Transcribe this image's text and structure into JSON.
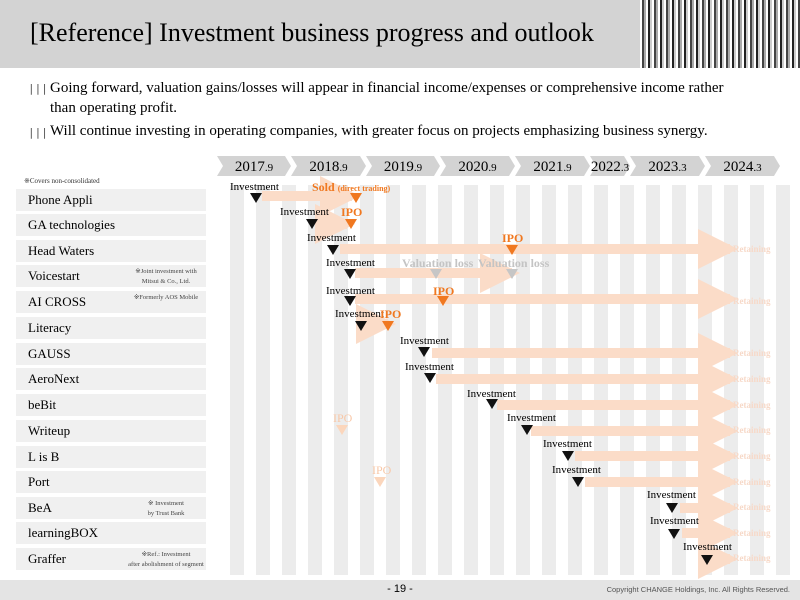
{
  "title": "[Reference] Investment business progress and outlook",
  "bullets": [
    {
      "mark": "|||",
      "text": "Going forward, valuation gains/losses will appear in financial income/expenses or comprehensive income rather"
    },
    {
      "mark": "",
      "text": "than operating profit."
    },
    {
      "mark": "|||",
      "text": "Will continue investing in operating companies, with greater focus on projects emphasizing business synergy."
    }
  ],
  "years": [
    {
      "main": "2017",
      "sub": ".9"
    },
    {
      "main": "2018",
      "sub": ".9"
    },
    {
      "main": "2019",
      "sub": ".9"
    },
    {
      "main": "2020",
      "sub": ".9"
    },
    {
      "main": "2021",
      "sub": ".9"
    },
    {
      "main": "2022",
      "sub": ".3"
    },
    {
      "main": "2023",
      "sub": ".3"
    },
    {
      "main": "2024",
      "sub": ".3"
    }
  ],
  "note_top": "※Covers non-consolidated",
  "companies": [
    {
      "name": "Phone Appli",
      "note1": "",
      "note2": ""
    },
    {
      "name": "GA technologies",
      "note1": "",
      "note2": ""
    },
    {
      "name": "Head Waters",
      "note1": "",
      "note2": ""
    },
    {
      "name": "Voicestart",
      "note1": "※Joint investment with",
      "note2": "Mitsui & Co., Ltd."
    },
    {
      "name": "AI CROSS",
      "note1": "※Formerly AOS Mobile",
      "note2": ""
    },
    {
      "name": "Literacy",
      "note1": "",
      "note2": ""
    },
    {
      "name": "GAUSS",
      "note1": "",
      "note2": ""
    },
    {
      "name": "AeroNext",
      "note1": "",
      "note2": ""
    },
    {
      "name": "beBit",
      "note1": "",
      "note2": ""
    },
    {
      "name": "Writeup",
      "note1": "",
      "note2": ""
    },
    {
      "name": "L is B",
      "note1": "",
      "note2": ""
    },
    {
      "name": "Port",
      "note1": "",
      "note2": ""
    },
    {
      "name": "BeA",
      "note1": "※ Investment",
      "note2": "by Trust Bank"
    },
    {
      "name": "learningBOX",
      "note1": "",
      "note2": ""
    },
    {
      "name": "Graffer",
      "note1": "※Ref.: Investment",
      "note2": "after abolishment of segment"
    }
  ],
  "labels": {
    "investment": "Investment",
    "sold": "Sold",
    "direct_trading": "(direct trading)",
    "ipo": "IPO",
    "valuation_loss": "Valuation loss",
    "retaining": "Retaining"
  },
  "colors": {
    "accent": "#f07820",
    "arrow_faint": "#fbdcc8",
    "header_bg": "#d3d3d3"
  },
  "footer": {
    "page": "- 19 -",
    "copyright": "Copyright CHANGE Holdings, Inc. All Rights Reserved."
  }
}
